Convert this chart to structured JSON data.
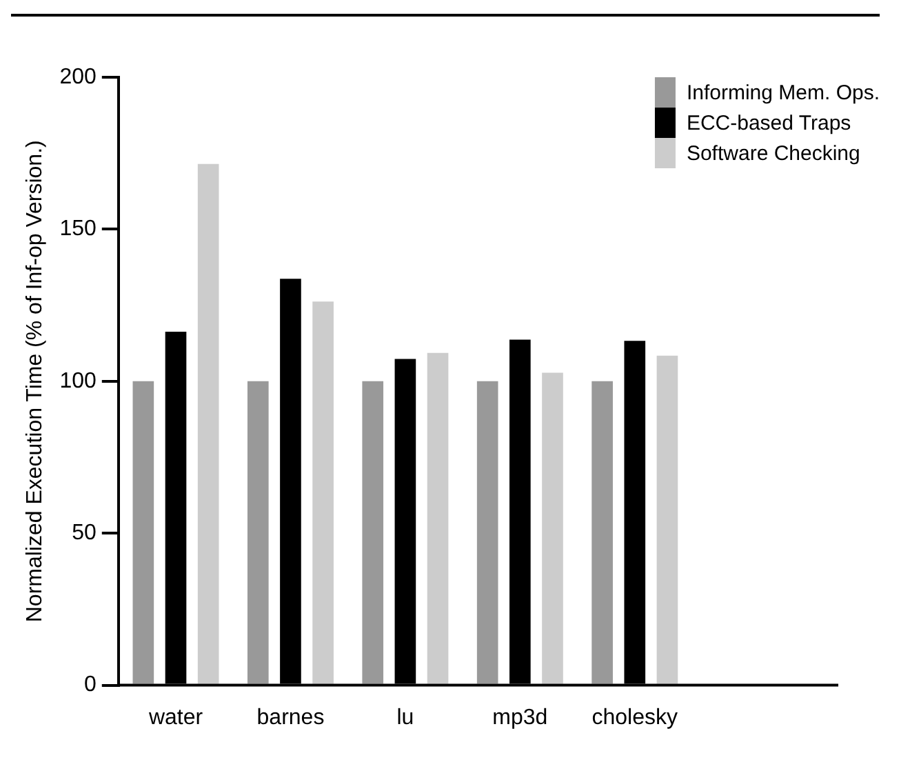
{
  "chart_data": {
    "type": "bar",
    "ylabel": "Normalized Execution Time (% of Inf-op Version.)",
    "categories": [
      "water",
      "barnes",
      "lu",
      "mp3d",
      "cholesky"
    ],
    "series": [
      {
        "name": "Informing Mem. Ops.",
        "color": "#999999",
        "values": [
          100,
          100,
          100,
          100,
          100
        ]
      },
      {
        "name": "ECC-based Traps",
        "color": "#000000",
        "values": [
          116.3,
          133.7,
          107.3,
          113.7,
          113.3
        ]
      },
      {
        "name": "Software Checking",
        "color": "#cccccc",
        "values": [
          171.5,
          126.2,
          109.3,
          102.8,
          108.4
        ]
      }
    ],
    "ylim": [
      0,
      200
    ],
    "yticks": [
      0,
      50,
      100,
      150,
      200
    ],
    "grid": false,
    "legend": "top right"
  }
}
